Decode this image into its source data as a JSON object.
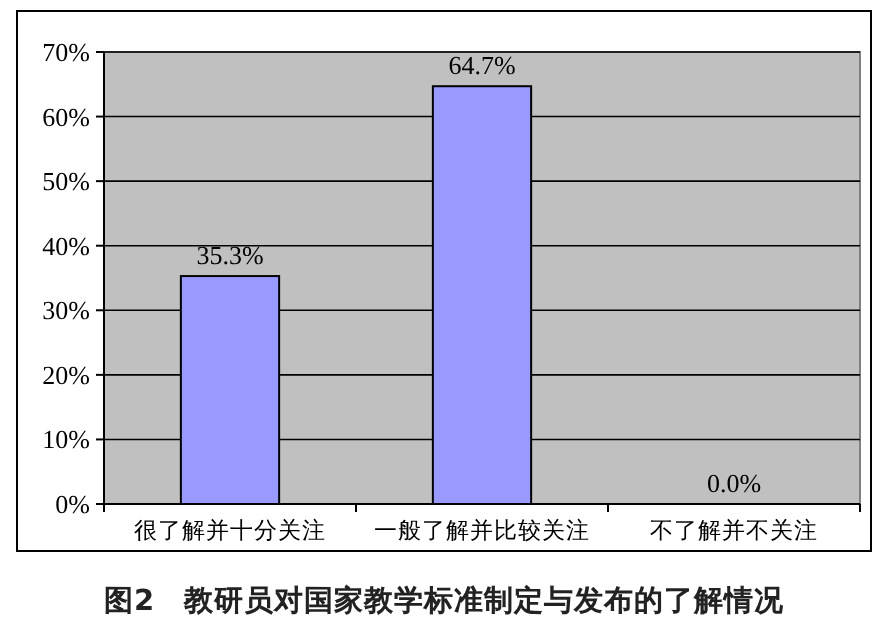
{
  "chart_data": {
    "type": "bar",
    "title": "图2　教研员对国家教学标准制定与发布的了解情况",
    "categories": [
      "很了解并十分关注",
      "一般了解并比较关注",
      "不了解并不关注"
    ],
    "values": [
      35.3,
      64.7,
      0.0
    ],
    "value_labels": [
      "35.3%",
      "64.7%",
      "0.0%"
    ],
    "color": "#9999ff",
    "ylim": [
      0,
      70
    ],
    "yticks": [
      {
        "value": 0,
        "label": "0%"
      },
      {
        "value": 10,
        "label": "10%"
      },
      {
        "value": 20,
        "label": "20%"
      },
      {
        "value": 30,
        "label": "30%"
      },
      {
        "value": 40,
        "label": "40%"
      },
      {
        "value": 50,
        "label": "50%"
      },
      {
        "value": 60,
        "label": "60%"
      },
      {
        "value": 70,
        "label": "70%"
      }
    ],
    "grid": "y"
  }
}
